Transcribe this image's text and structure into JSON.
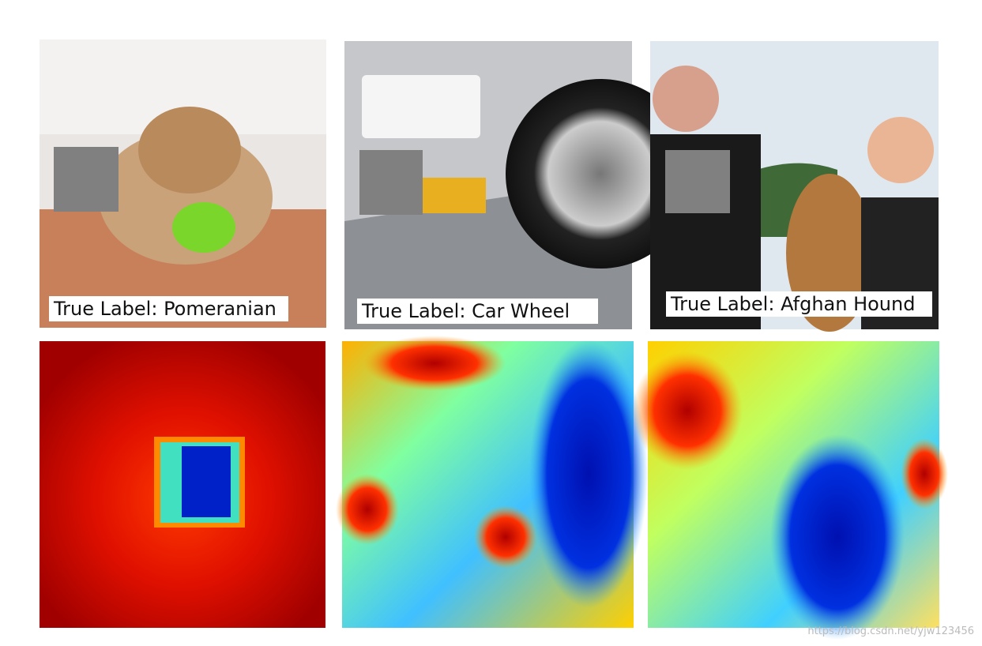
{
  "figure": {
    "panels": [
      {
        "label": "True Label: Pomeranian"
      },
      {
        "label": "True Label: Car Wheel"
      },
      {
        "label": "True Label: Afghan Hound"
      }
    ],
    "watermark": "https://blog.csdn.net/yjw123456"
  }
}
